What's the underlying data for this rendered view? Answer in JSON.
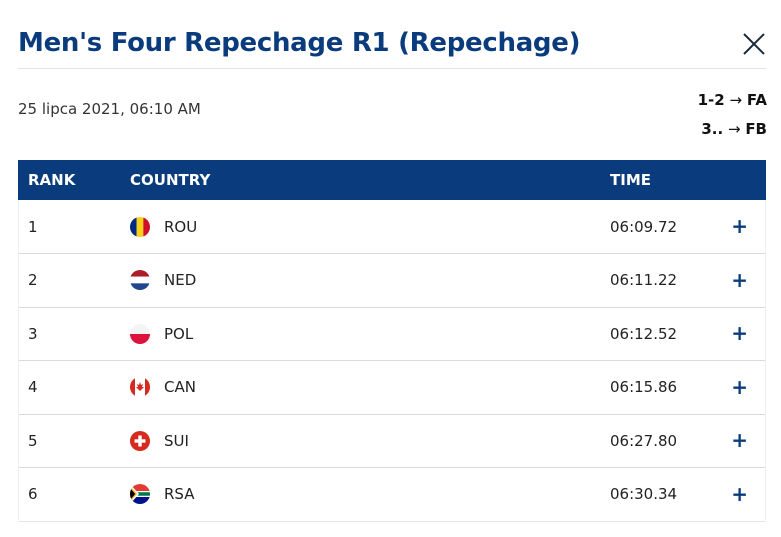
{
  "header": {
    "title": "Men's Four Repechage R1 (Repechage)",
    "date": "25 lipca 2021, 06:10 AM"
  },
  "qualification": [
    {
      "rule": "1-2",
      "arrow": "→",
      "dest": "FA"
    },
    {
      "rule": "3..",
      "arrow": "→",
      "dest": "FB"
    }
  ],
  "table": {
    "headers": {
      "rank": "RANK",
      "country": "COUNTRY",
      "time": "TIME"
    },
    "rows": [
      {
        "rank": "1",
        "country": "ROU",
        "time": "06:09.72",
        "expand": "+",
        "flag": "romania-flag"
      },
      {
        "rank": "2",
        "country": "NED",
        "time": "06:11.22",
        "expand": "+",
        "flag": "netherlands-flag"
      },
      {
        "rank": "3",
        "country": "POL",
        "time": "06:12.52",
        "expand": "+",
        "flag": "poland-flag"
      },
      {
        "rank": "4",
        "country": "CAN",
        "time": "06:15.86",
        "expand": "+",
        "flag": "canada-flag"
      },
      {
        "rank": "5",
        "country": "SUI",
        "time": "06:27.80",
        "expand": "+",
        "flag": "switzerland-flag"
      },
      {
        "rank": "6",
        "country": "RSA",
        "time": "06:30.34",
        "expand": "+",
        "flag": "south-africa-flag"
      }
    ]
  },
  "colors": {
    "accent": "#0a3c7d",
    "header_text": "#ffffff",
    "row_divider": "#d7dbe0"
  },
  "icons": {
    "close": "close-icon",
    "expand": "plus-icon"
  }
}
